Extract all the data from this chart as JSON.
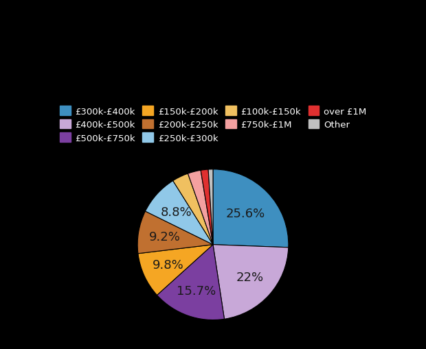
{
  "labels": [
    "£300k-£400k",
    "£400k-£500k",
    "£500k-£750k",
    "£150k-£200k",
    "£200k-£250k",
    "£250k-£300k",
    "£100k-£150k",
    "£750k-£1M",
    "over £1M",
    "Other"
  ],
  "values": [
    25.6,
    22.0,
    15.7,
    9.8,
    9.2,
    8.8,
    3.5,
    2.8,
    1.6,
    1.0
  ],
  "colors": [
    "#3e8fc0",
    "#c8a8d8",
    "#7b3fa0",
    "#f5a623",
    "#c07030",
    "#90c8e8",
    "#f0c060",
    "#f4a0a0",
    "#e03030",
    "#c0c0c0"
  ],
  "legend_labels_row1": [
    "£300k-£400k",
    "£400k-£500k",
    "£500k-£750k",
    "£150k-£200k"
  ],
  "legend_labels_row2": [
    "£200k-£250k",
    "£250k-£300k",
    "£100k-£150k",
    "£750k-£1M",
    "over £1M"
  ],
  "legend_labels_row3": [
    "Other"
  ],
  "background_color": "#000000",
  "text_color": "#1a1a1a",
  "label_fontsize": 13,
  "legend_fontsize": 9.5
}
